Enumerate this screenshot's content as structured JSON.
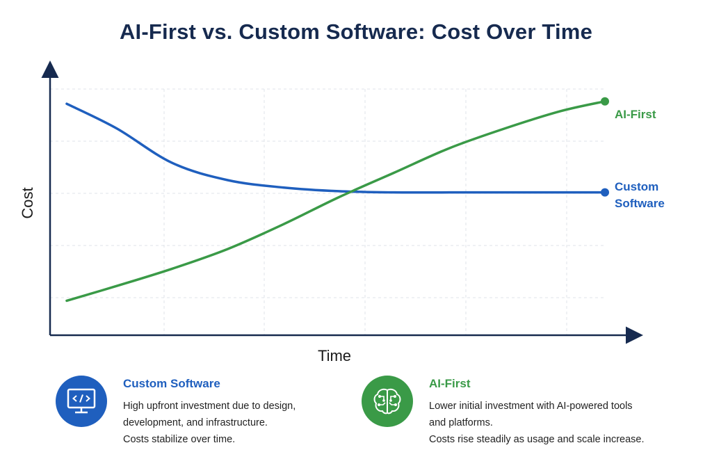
{
  "chart_data": {
    "type": "line",
    "title": "AI-First vs. Custom Software: Cost Over Time",
    "xlabel": "Time",
    "ylabel": "Cost",
    "grid": true,
    "xlim": [
      0,
      10
    ],
    "ylim": [
      0,
      10
    ],
    "series": [
      {
        "name": "Custom Software",
        "color": "#1f5fbe",
        "end_label": "Custom Software",
        "x": [
          0.3,
          1.2,
          2.2,
          3.2,
          4.2,
          5.2,
          6.2,
          7.2,
          8.2,
          9.2,
          10.0
        ],
        "y": [
          9.4,
          8.4,
          7.0,
          6.3,
          6.0,
          5.85,
          5.8,
          5.8,
          5.8,
          5.8,
          5.8
        ]
      },
      {
        "name": "AI-First",
        "color": "#3a9a47",
        "end_label": "AI-First",
        "x": [
          0.3,
          1.2,
          2.2,
          3.2,
          4.2,
          5.2,
          6.2,
          7.2,
          8.2,
          9.2,
          10.0
        ],
        "y": [
          1.4,
          2.0,
          2.7,
          3.5,
          4.5,
          5.6,
          6.6,
          7.6,
          8.4,
          9.1,
          9.5
        ]
      }
    ]
  },
  "legend": {
    "custom": {
      "title": "Custom Software",
      "icon": "code-monitor-icon",
      "lines": [
        "High upfront investment due to design,",
        "development, and infrastructure.",
        "Costs stabilize over time."
      ]
    },
    "ai": {
      "title": "AI-First",
      "icon": "brain-circuit-icon",
      "lines": [
        "Lower initial investment with AI-powered tools",
        "and platforms.",
        "Costs rise steadily as usage and scale increase."
      ]
    }
  }
}
